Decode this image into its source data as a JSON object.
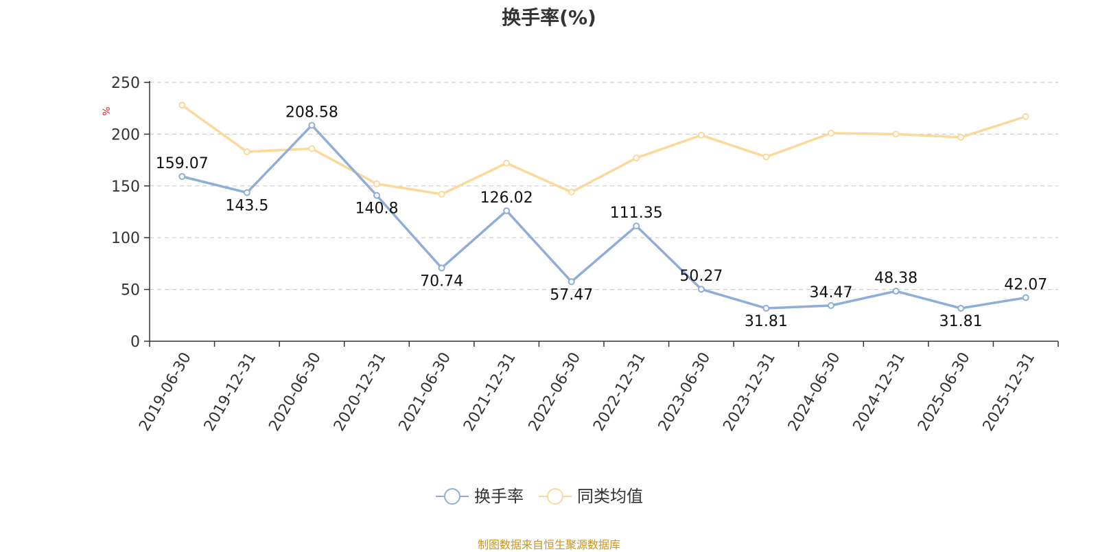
{
  "title": "换手率(%)",
  "source_note": "制图数据来自恒生聚源数据库",
  "colors": {
    "series_main": "#8eadd9",
    "series_avg": "#fcd89a",
    "ylabel": "#e01f1f",
    "source": "#c8941a",
    "axis": "#333333",
    "grid": "#cccccc",
    "text": "#333333"
  },
  "chart_data": {
    "type": "line",
    "title": "换手率(%)",
    "xlabel": "",
    "ylabel": "%",
    "ylim": [
      0,
      250
    ],
    "yticks": [
      0,
      50,
      100,
      150,
      200,
      250
    ],
    "grid": "horizontal dashed",
    "legend_position": "bottom-center",
    "categories": [
      "2019-06-30",
      "2019-12-31",
      "2020-06-30",
      "2020-12-31",
      "2021-06-30",
      "2021-12-31",
      "2022-06-30",
      "2022-12-31",
      "2023-06-30",
      "2023-12-31",
      "2024-06-30",
      "2024-12-31",
      "2025-06-30",
      "2025-12-31"
    ],
    "series": [
      {
        "name": "换手率",
        "values": [
          159.07,
          143.5,
          208.58,
          140.8,
          70.74,
          126.02,
          57.47,
          111.35,
          50.27,
          31.81,
          34.47,
          48.38,
          31.81,
          42.07
        ],
        "labels": [
          "159.07",
          "143.5",
          "208.58",
          "140.8",
          "70.74",
          "126.02",
          "57.47",
          "111.35",
          "50.27",
          "31.81",
          "34.47",
          "48.38",
          "31.81",
          "42.07"
        ]
      },
      {
        "name": "同类均值",
        "values": [
          228,
          183,
          186,
          152,
          142,
          172,
          144,
          177,
          199,
          178,
          201,
          200,
          197,
          217
        ]
      }
    ]
  }
}
